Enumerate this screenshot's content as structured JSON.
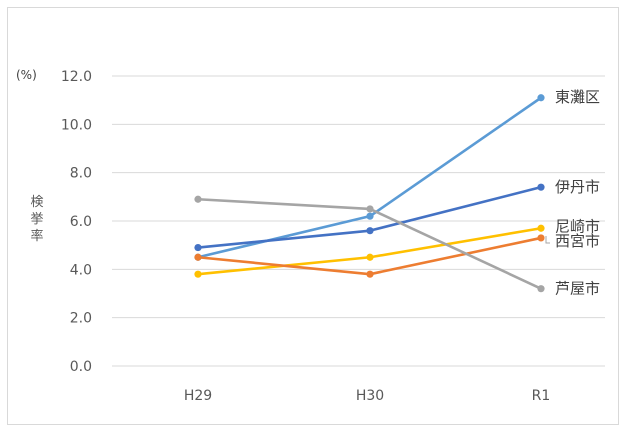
{
  "chart_data": {
    "type": "line",
    "unit_label": "(%)",
    "ylabel": "検挙率",
    "categories": [
      "H29",
      "H30",
      "R1"
    ],
    "ylim": [
      0,
      12
    ],
    "yticks": [
      "0.0",
      "2.0",
      "4.0",
      "6.0",
      "8.0",
      "10.0",
      "12.0"
    ],
    "grid": true,
    "series": [
      {
        "name": "東灘区",
        "values": [
          4.5,
          6.2,
          11.1
        ],
        "color": "#5b9bd5"
      },
      {
        "name": "伊丹市",
        "values": [
          4.9,
          5.6,
          7.4
        ],
        "color": "#4472c4"
      },
      {
        "name": "尼崎市",
        "values": [
          3.8,
          4.5,
          5.7
        ],
        "color": "#ffc000"
      },
      {
        "name": "西宮市",
        "values": [
          4.5,
          3.8,
          5.3
        ],
        "color": "#ed7d31"
      },
      {
        "name": "芦屋市",
        "values": [
          6.9,
          6.5,
          3.2
        ],
        "color": "#a5a5a5"
      }
    ]
  }
}
